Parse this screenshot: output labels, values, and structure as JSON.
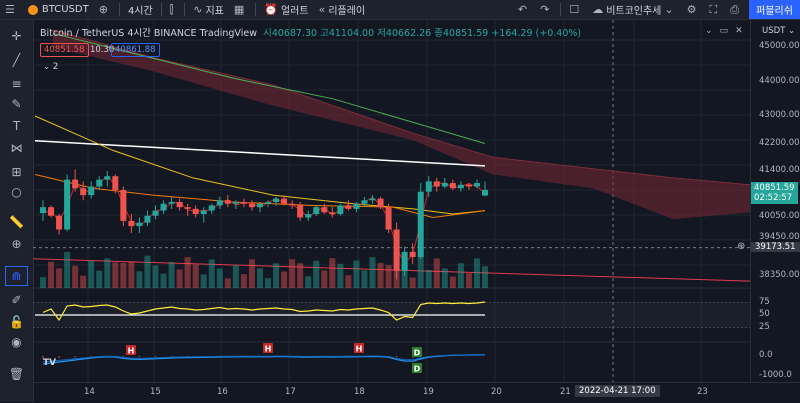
{
  "topbar": {
    "symbol": "BTCUSDT",
    "interval": "4시간",
    "indicators_label": "지표",
    "alert_label": "얼러트",
    "replay_label": "리플레이",
    "layout_name": "비트코인추세",
    "publish_label": "퍼블리쉬"
  },
  "legend": {
    "title": "Bitcoin / TetherUS  4시간  BINANCE  TradingView",
    "ohlc": "시40687.30  고41104.00  저40662.26  종40851.59  +164.29 (+0.40%)"
  },
  "price_boxes": {
    "bid": "40851.58",
    "spread": "10.30",
    "ask": "40861.88",
    "indicator_count": "2"
  },
  "price_axis": {
    "currency": "USDT",
    "ticks": [
      "45000.00",
      "44000.00",
      "43000.00",
      "42200.00",
      "41400.00",
      "40050.00",
      "39450.00",
      "38350.00"
    ],
    "current_price": "40851.59",
    "countdown": "02:52:57",
    "crosshair_price": "39173.51"
  },
  "rsi_axis": {
    "ticks": [
      "75",
      "50",
      "25"
    ]
  },
  "macd_axis": {
    "ticks": [
      "0.0",
      "-1000.0"
    ]
  },
  "time_axis": {
    "ticks": [
      "14",
      "15",
      "16",
      "17",
      "18",
      "19",
      "20",
      "21",
      "23"
    ],
    "crosshair_time": "2022-04-21  17:00"
  },
  "markers": {
    "h": "H",
    "d": "D"
  },
  "colors": {
    "up": "#26a69a",
    "down": "#ef5350",
    "accent": "#2962ff"
  },
  "chart_data": {
    "type": "candlestick",
    "ohlc": [
      [
        40180,
        40550,
        39950,
        40350
      ],
      [
        40350,
        40400,
        40050,
        40100
      ],
      [
        40100,
        40150,
        39550,
        39700
      ],
      [
        39700,
        41300,
        39650,
        41150
      ],
      [
        41150,
        41450,
        40800,
        40900
      ],
      [
        40900,
        41100,
        40550,
        40700
      ],
      [
        40700,
        41100,
        40600,
        40950
      ],
      [
        40950,
        41250,
        40850,
        41150
      ],
      [
        41150,
        41400,
        40950,
        41250
      ],
      [
        41250,
        41300,
        40750,
        40850
      ],
      [
        40850,
        40950,
        39800,
        39950
      ],
      [
        39950,
        40150,
        39600,
        39800
      ],
      [
        39800,
        40050,
        39600,
        39900
      ],
      [
        39900,
        40250,
        39800,
        40100
      ],
      [
        40100,
        40400,
        40000,
        40250
      ],
      [
        40250,
        40550,
        40150,
        40450
      ],
      [
        40450,
        40650,
        40300,
        40500
      ],
      [
        40500,
        40600,
        40250,
        40350
      ],
      [
        40350,
        40450,
        40100,
        40300
      ],
      [
        40300,
        40400,
        40050,
        40150
      ],
      [
        40150,
        40350,
        39900,
        40250
      ],
      [
        40250,
        40450,
        40150,
        40400
      ],
      [
        40400,
        40650,
        40300,
        40550
      ],
      [
        40550,
        40700,
        40350,
        40450
      ],
      [
        40450,
        40550,
        40300,
        40500
      ],
      [
        40500,
        40600,
        40350,
        40450
      ],
      [
        40450,
        40550,
        40250,
        40350
      ],
      [
        40350,
        40500,
        40200,
        40450
      ],
      [
        40450,
        40550,
        40350,
        40500
      ],
      [
        40500,
        40650,
        40400,
        40600
      ],
      [
        40600,
        40700,
        40400,
        40450
      ],
      [
        40450,
        40550,
        40300,
        40400
      ],
      [
        40400,
        40500,
        39950,
        40050
      ],
      [
        40050,
        40250,
        39950,
        40150
      ],
      [
        40150,
        40400,
        40100,
        40350
      ],
      [
        40350,
        40450,
        40150,
        40200
      ],
      [
        40200,
        40350,
        40050,
        40150
      ],
      [
        40150,
        40450,
        40100,
        40400
      ],
      [
        40400,
        40550,
        40250,
        40300
      ],
      [
        40300,
        40500,
        40200,
        40450
      ],
      [
        40450,
        40650,
        40350,
        40550
      ],
      [
        40550,
        40700,
        40450,
        40600
      ],
      [
        40600,
        40650,
        40300,
        40350
      ],
      [
        40350,
        40450,
        39600,
        39700
      ],
      [
        39700,
        39900,
        38250,
        38500
      ],
      [
        38500,
        39200,
        38350,
        39050
      ],
      [
        39050,
        39300,
        38700,
        38900
      ],
      [
        38900,
        41050,
        38850,
        40800
      ],
      [
        40800,
        41250,
        40650,
        41100
      ],
      [
        41100,
        41200,
        40800,
        40950
      ],
      [
        40950,
        41200,
        40900,
        41050
      ],
      [
        41050,
        41150,
        40850,
        40900
      ],
      [
        40900,
        41100,
        40800,
        41000
      ],
      [
        41000,
        41050,
        40850,
        40950
      ],
      [
        40950,
        41150,
        40900,
        41050
      ],
      [
        40687.3,
        41104,
        40662.26,
        40851.59
      ]
    ],
    "y_range": [
      38000,
      45500
    ],
    "ichimoku_cloud": true,
    "rsi_range": [
      0,
      100
    ],
    "rsi": [
      55,
      62,
      40,
      68,
      70,
      66,
      67,
      69,
      70,
      66,
      58,
      52,
      54,
      58,
      62,
      64,
      66,
      63,
      62,
      60,
      61,
      63,
      65,
      62,
      63,
      62,
      60,
      62,
      63,
      64,
      62,
      61,
      57,
      58,
      60,
      59,
      58,
      61,
      60,
      62,
      63,
      64,
      60,
      55,
      40,
      47,
      45,
      71,
      74,
      73,
      74,
      73,
      74,
      73,
      74,
      76
    ],
    "macd": [
      -400,
      -350,
      -300,
      -250,
      -200,
      -150,
      -100,
      -60,
      -40,
      -50,
      -120,
      -160,
      -170,
      -160,
      -140,
      -120,
      -100,
      -90,
      -80,
      -75,
      -70,
      -60,
      -50,
      -45,
      -40,
      -40,
      -42,
      -40,
      -38,
      -35,
      -35,
      -38,
      -50,
      -55,
      -50,
      -48,
      -50,
      -45,
      -42,
      -38,
      -30,
      -25,
      -30,
      -60,
      -180,
      -250,
      -260,
      -150,
      -60,
      -20,
      10,
      30,
      40,
      50,
      55,
      60
    ]
  }
}
